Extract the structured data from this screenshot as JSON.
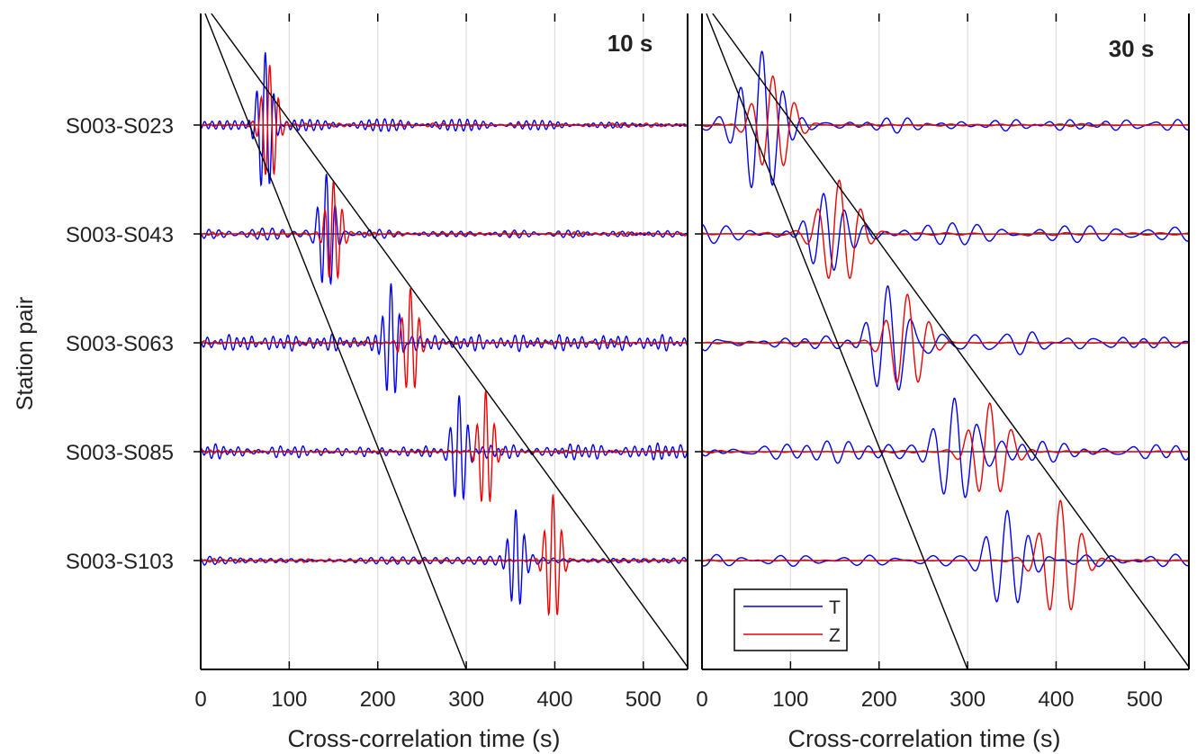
{
  "chart_data": [
    {
      "type": "line",
      "panel_label": "10 s",
      "xlabel": "Cross-correlation time (s)",
      "ylabel": "Station pair",
      "xlim": [
        0,
        550
      ],
      "xticks": [
        0,
        100,
        200,
        300,
        400,
        500
      ],
      "tick_labels": [
        "0",
        "100",
        "200",
        "300",
        "400",
        "500"
      ],
      "grid": true,
      "categories": [
        "S003-S023",
        "S003-S043",
        "S003-S063",
        "S003-S085",
        "S003-S103"
      ],
      "series": [
        {
          "name": "T",
          "color": "#0000ee",
          "packets": [
            {
              "center": 73,
              "period": 10,
              "amp": 0.65
            },
            {
              "center": 142,
              "period": 10,
              "amp": 0.5
            },
            {
              "center": 215,
              "period": 10,
              "amp": 0.5
            },
            {
              "center": 292,
              "period": 10,
              "amp": 0.5
            },
            {
              "center": 356,
              "period": 10,
              "amp": 0.5
            }
          ],
          "noise_amp": 0.05
        },
        {
          "name": "Z",
          "color": "#ee0000",
          "packets": [
            {
              "center": 78,
              "period": 10,
              "amp": 0.55
            },
            {
              "center": 150,
              "period": 10,
              "amp": 0.5
            },
            {
              "center": 237,
              "period": 10,
              "amp": 0.5
            },
            {
              "center": 322,
              "period": 10,
              "amp": 0.55
            },
            {
              "center": 398,
              "period": 10,
              "amp": 0.6
            }
          ],
          "noise_amp": 0.015
        }
      ],
      "moveout_lines": [
        {
          "t0": 5,
          "t1": 300
        },
        {
          "t0": 12,
          "t1": 552
        }
      ]
    },
    {
      "type": "line",
      "panel_label": "30 s",
      "xlabel": "Cross-correlation time (s)",
      "xlim": [
        0,
        550
      ],
      "xticks": [
        0,
        100,
        200,
        300,
        400,
        500
      ],
      "tick_labels": [
        "0",
        "100",
        "200",
        "300",
        "400",
        "500"
      ],
      "grid": true,
      "categories": [
        "S003-S023",
        "S003-S043",
        "S003-S063",
        "S003-S085",
        "S003-S103"
      ],
      "series": [
        {
          "name": "T",
          "color": "#0000ee",
          "packets": [
            {
              "center": 68,
              "period": 25,
              "amp": 0.65
            },
            {
              "center": 138,
              "period": 25,
              "amp": 0.45
            },
            {
              "center": 210,
              "period": 25,
              "amp": 0.5
            },
            {
              "center": 285,
              "period": 25,
              "amp": 0.5
            },
            {
              "center": 345,
              "period": 25,
              "amp": 0.5
            }
          ],
          "noise_amp": 0.09
        },
        {
          "name": "Z",
          "color": "#ee0000",
          "packets": [
            {
              "center": 80,
              "period": 25,
              "amp": 0.45
            },
            {
              "center": 155,
              "period": 25,
              "amp": 0.5
            },
            {
              "center": 232,
              "period": 25,
              "amp": 0.45
            },
            {
              "center": 325,
              "period": 25,
              "amp": 0.45
            },
            {
              "center": 405,
              "period": 25,
              "amp": 0.55
            }
          ],
          "noise_amp": 0.01
        }
      ],
      "moveout_lines": [
        {
          "t0": 5,
          "t1": 300
        },
        {
          "t0": 12,
          "t1": 552
        }
      ],
      "legend": {
        "position": "bottom-left",
        "entries": [
          "T",
          "Z"
        ]
      }
    }
  ]
}
